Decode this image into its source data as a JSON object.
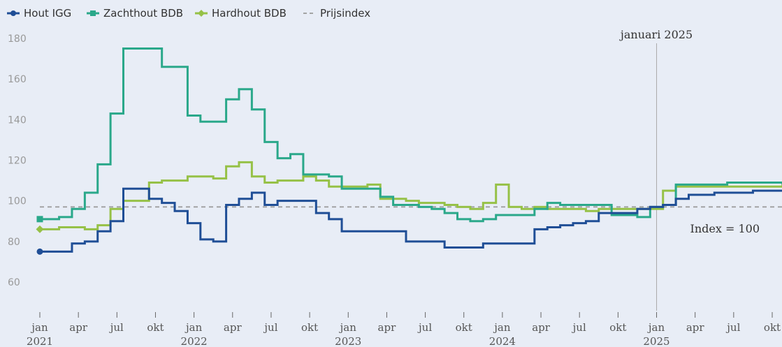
{
  "chart_data": {
    "type": "line",
    "step": true,
    "ylim": [
      45,
      185
    ],
    "yticks": [
      60,
      80,
      100,
      120,
      140,
      160,
      180
    ],
    "grid": false,
    "legend_position": "top-left",
    "x_tick_labels": [
      {
        "month": "jan",
        "year": "2021",
        "t": 0
      },
      {
        "month": "apr",
        "year": "",
        "t": 3
      },
      {
        "month": "jul",
        "year": "",
        "t": 6
      },
      {
        "month": "okt",
        "year": "",
        "t": 9
      },
      {
        "month": "jan",
        "year": "2022",
        "t": 12
      },
      {
        "month": "apr",
        "year": "",
        "t": 15
      },
      {
        "month": "jul",
        "year": "",
        "t": 18
      },
      {
        "month": "okt",
        "year": "",
        "t": 21
      },
      {
        "month": "jan",
        "year": "2023",
        "t": 24
      },
      {
        "month": "apr",
        "year": "",
        "t": 27
      },
      {
        "month": "jul",
        "year": "",
        "t": 30
      },
      {
        "month": "okt",
        "year": "",
        "t": 33
      },
      {
        "month": "jan",
        "year": "2024",
        "t": 36
      },
      {
        "month": "apr",
        "year": "",
        "t": 39
      },
      {
        "month": "jul",
        "year": "",
        "t": 42
      },
      {
        "month": "okt",
        "year": "",
        "t": 45
      },
      {
        "month": "jan",
        "year": "2025",
        "t": 48
      },
      {
        "month": "apr",
        "year": "",
        "t": 51
      },
      {
        "month": "jul",
        "year": "",
        "t": 54
      },
      {
        "month": "okt",
        "year": "",
        "t": 57
      }
    ],
    "x_range": [
      -0.2,
      57.8
    ],
    "annotations": {
      "vline_label": "januari 2025",
      "vline_t": 48,
      "index_label": "Index = 100"
    },
    "series": [
      {
        "name": "Hout IGG",
        "color": "#1f4e96",
        "marker": "dot",
        "points": [
          [
            0,
            75
          ],
          [
            2.5,
            79
          ],
          [
            3.5,
            80
          ],
          [
            4.5,
            85
          ],
          [
            5.5,
            90
          ],
          [
            6.5,
            106
          ],
          [
            8.5,
            101
          ],
          [
            9.5,
            99
          ],
          [
            10.5,
            95
          ],
          [
            11.5,
            89
          ],
          [
            12.5,
            81
          ],
          [
            13.5,
            80
          ],
          [
            14.5,
            98
          ],
          [
            15.5,
            101
          ],
          [
            16.5,
            104
          ],
          [
            17.5,
            98
          ],
          [
            18.5,
            100
          ],
          [
            21.5,
            94
          ],
          [
            22.5,
            91
          ],
          [
            23.5,
            85
          ],
          [
            25.5,
            85
          ],
          [
            28.5,
            80
          ],
          [
            31.5,
            77
          ],
          [
            34.5,
            79
          ],
          [
            38.5,
            86
          ],
          [
            39.5,
            87
          ],
          [
            40.5,
            88
          ],
          [
            41.5,
            89
          ],
          [
            42.5,
            90
          ],
          [
            43.5,
            94
          ],
          [
            46.5,
            96
          ],
          [
            47.5,
            97
          ],
          [
            48.5,
            98
          ],
          [
            49.5,
            101
          ],
          [
            50.5,
            103
          ],
          [
            52.5,
            104
          ],
          [
            55.5,
            105
          ],
          [
            57.8,
            105
          ]
        ]
      },
      {
        "name": "Zachthout BDB",
        "color": "#2aa88a",
        "marker": "square",
        "points": [
          [
            0,
            91
          ],
          [
            1.5,
            92
          ],
          [
            2.5,
            96
          ],
          [
            3.5,
            104
          ],
          [
            4.5,
            118
          ],
          [
            5.5,
            143
          ],
          [
            6.5,
            175
          ],
          [
            9.5,
            166
          ],
          [
            11.5,
            142
          ],
          [
            12.5,
            139
          ],
          [
            14.5,
            150
          ],
          [
            15.5,
            155
          ],
          [
            16.5,
            145
          ],
          [
            17.5,
            129
          ],
          [
            18.5,
            121
          ],
          [
            19.5,
            123
          ],
          [
            20.5,
            113
          ],
          [
            22.5,
            112
          ],
          [
            23.5,
            106
          ],
          [
            26.5,
            102
          ],
          [
            27.5,
            98
          ],
          [
            29.5,
            97
          ],
          [
            30.5,
            96
          ],
          [
            31.5,
            94
          ],
          [
            32.5,
            91
          ],
          [
            33.5,
            90
          ],
          [
            34.5,
            91
          ],
          [
            35.5,
            93
          ],
          [
            38.5,
            96
          ],
          [
            39.5,
            99
          ],
          [
            40.5,
            98
          ],
          [
            41.5,
            98
          ],
          [
            44.5,
            93
          ],
          [
            46.5,
            92
          ],
          [
            47.5,
            97
          ],
          [
            48.5,
            98
          ],
          [
            49.5,
            108
          ],
          [
            53.5,
            109
          ],
          [
            57.8,
            108
          ]
        ]
      },
      {
        "name": "Hardhout BDB",
        "color": "#96c147",
        "marker": "diamond",
        "points": [
          [
            0,
            86
          ],
          [
            1.5,
            87
          ],
          [
            2.5,
            87
          ],
          [
            3.5,
            86
          ],
          [
            4.5,
            88
          ],
          [
            5.5,
            96
          ],
          [
            6.5,
            100
          ],
          [
            8.5,
            109
          ],
          [
            9.5,
            110
          ],
          [
            11.5,
            112
          ],
          [
            13.5,
            111
          ],
          [
            14.5,
            117
          ],
          [
            15.5,
            119
          ],
          [
            16.5,
            112
          ],
          [
            17.5,
            109
          ],
          [
            18.5,
            110
          ],
          [
            20.5,
            112
          ],
          [
            21.5,
            110
          ],
          [
            22.5,
            107
          ],
          [
            23.5,
            107
          ],
          [
            25.5,
            108
          ],
          [
            26.5,
            101
          ],
          [
            28.5,
            100
          ],
          [
            29.5,
            99
          ],
          [
            31.5,
            98
          ],
          [
            32.5,
            97
          ],
          [
            33.5,
            96
          ],
          [
            34.5,
            99
          ],
          [
            35.5,
            108
          ],
          [
            36.5,
            97
          ],
          [
            37.5,
            96
          ],
          [
            38.5,
            97
          ],
          [
            39.5,
            96
          ],
          [
            42.5,
            95
          ],
          [
            43.5,
            96
          ],
          [
            44.5,
            96
          ],
          [
            47.5,
            96
          ],
          [
            48.5,
            105
          ],
          [
            49.5,
            107
          ],
          [
            53.5,
            107
          ],
          [
            57.8,
            108
          ]
        ]
      },
      {
        "name": "Prijsindex",
        "color": "#999999",
        "style": "dashed",
        "points": [
          [
            0,
            97
          ],
          [
            57.8,
            97
          ]
        ]
      }
    ]
  }
}
